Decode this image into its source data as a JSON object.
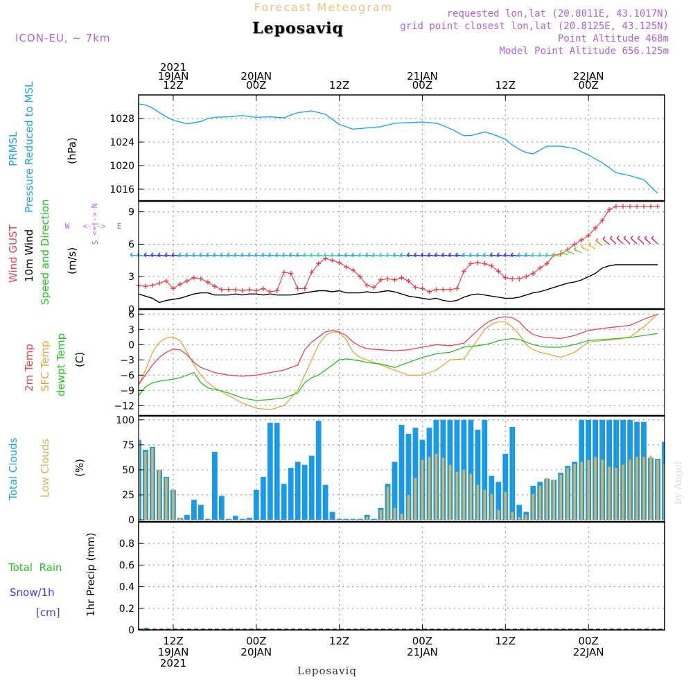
{
  "header": {
    "super_title": "Forecast Meteogram",
    "title": "Leposaviq",
    "model": "ICON-EU, ~ 7km",
    "requested": "requested lon,lat (20.8011E, 43.1017N)",
    "grid_point": "grid point closest lon,lat (20.8125E, 43.125N)",
    "point_altitude": "Point Altitude 468m",
    "model_altitude": "Model Point Altitude 656.125m"
  },
  "footer": {
    "location": "Leposaviq",
    "watermark": "by Angel"
  },
  "time_axis": {
    "top_ticks": [
      {
        "t": 12,
        "lines": [
          "2021",
          "19JAN",
          "12Z"
        ]
      },
      {
        "t": 24,
        "lines": [
          "20JAN",
          "00Z"
        ]
      },
      {
        "t": 36,
        "lines": [
          "12Z"
        ]
      },
      {
        "t": 48,
        "lines": [
          "21JAN",
          "00Z"
        ]
      },
      {
        "t": 60,
        "lines": [
          "12Z"
        ]
      },
      {
        "t": 72,
        "lines": [
          "22JAN",
          "00Z"
        ]
      }
    ],
    "bottom_ticks": [
      {
        "t": 12,
        "lines": [
          "12Z",
          "19JAN",
          "2021"
        ]
      },
      {
        "t": 24,
        "lines": [
          "00Z",
          "20JAN"
        ]
      },
      {
        "t": 36,
        "lines": [
          "12Z"
        ]
      },
      {
        "t": 48,
        "lines": [
          "00Z",
          "21JAN"
        ]
      },
      {
        "t": 60,
        "lines": [
          "12Z"
        ]
      },
      {
        "t": 72,
        "lines": [
          "00Z",
          "22JAN"
        ]
      }
    ],
    "t_range": [
      7,
      83
    ]
  },
  "panel_labels": {
    "pressure": {
      "name1": "PRMSL",
      "name2": "Pressure Reduced to MSL",
      "unit": "(hPa)"
    },
    "wind": {
      "gust": "Wind GUST",
      "wind10": "10m Wind",
      "speed_dir": "Speed and Direction",
      "unit": "(m/s)",
      "compass_n": "N",
      "compass_s": "S",
      "compass_w": "W",
      "compass_e": "E"
    },
    "temp": {
      "t2m": "2m Temp",
      "sfc": "SFC Temp",
      "dewpt": "dewpt Temp",
      "unit": "(C)"
    },
    "clouds": {
      "total": "Total Clouds",
      "low": "Low Clouds",
      "unit": "(%)"
    },
    "precip": {
      "total_rain": "Total  Rain",
      "snow": "Snow/1h",
      "snow_unit": "[cm]",
      "ylabel": "1hr Precip (mm)"
    }
  },
  "colors": {
    "pressure": "#1aa7e6",
    "gust": "#e8424f",
    "wind10": "#000000",
    "t2m": "#e8424f",
    "sfc": "#e6a53a",
    "dewpt": "#22c422",
    "total_clouds": "#1a9ae6",
    "low_clouds": "#d9b25a",
    "rain": "#22c422",
    "snow": "#3a3ae6",
    "purple": "#b061d9",
    "orange": "#f0c07a"
  },
  "chart_data": [
    {
      "type": "line",
      "panel": "pressure",
      "title": "PRMSL",
      "ylabel": "(hPa)",
      "ylim": [
        1014,
        1032
      ],
      "yticks": [
        1016,
        1020,
        1024,
        1028
      ],
      "x": [
        7,
        8,
        9,
        10,
        11,
        12,
        13,
        14,
        15,
        16,
        17,
        18,
        20,
        22,
        24,
        26,
        28,
        29,
        30,
        32,
        34,
        36,
        38,
        40,
        42,
        44,
        46,
        48,
        50,
        51,
        52,
        54,
        55,
        56,
        57,
        58,
        60,
        61,
        62,
        63,
        64,
        66,
        68,
        70,
        72,
        74,
        76,
        78,
        80,
        82
      ],
      "series": [
        {
          "values": [
            1030.5,
            1030.3,
            1029.8,
            1029.0,
            1028.3,
            1027.7,
            1027.4,
            1027.1,
            1027.3,
            1027.5,
            1028.0,
            1028.2,
            1028.3,
            1028.5,
            1028.2,
            1028.3,
            1028.1,
            1028.6,
            1029.0,
            1029.3,
            1028.7,
            1027.0,
            1026.2,
            1026.4,
            1026.6,
            1027.2,
            1027.3,
            1027.4,
            1027.2,
            1026.8,
            1026.3,
            1025.1,
            1025.1,
            1025.4,
            1025.7,
            1025.4,
            1024.5,
            1023.5,
            1022.8,
            1022.2,
            1022.0,
            1023.3,
            1023.3,
            1022.9,
            1021.8,
            1020.5,
            1018.8,
            1018.3,
            1017.6,
            1015.3
          ]
        }
      ]
    },
    {
      "type": "line",
      "panel": "wind",
      "ylabel": "(m/s)",
      "ylim": [
        0,
        10
      ],
      "yticks": [
        0,
        3,
        6,
        9
      ],
      "x": [
        7,
        8,
        9,
        10,
        11,
        12,
        13,
        14,
        15,
        16,
        17,
        18,
        19,
        20,
        21,
        22,
        23,
        24,
        25,
        26,
        27,
        28,
        29,
        30,
        31,
        32,
        33,
        34,
        35,
        36,
        37,
        38,
        39,
        40,
        41,
        42,
        43,
        44,
        45,
        46,
        47,
        48,
        49,
        50,
        51,
        52,
        53,
        54,
        55,
        56,
        57,
        58,
        59,
        60,
        61,
        62,
        63,
        64,
        65,
        66,
        67,
        68,
        69,
        70,
        71,
        72,
        73,
        74,
        75,
        76,
        77,
        78,
        79,
        80,
        81,
        82
      ],
      "series": [
        {
          "name": "Wind GUST",
          "values": [
            2.2,
            2.1,
            2.2,
            2.4,
            2.6,
            1.9,
            2.3,
            2.6,
            2.9,
            2.8,
            2.5,
            2.1,
            1.8,
            1.8,
            1.8,
            1.7,
            1.8,
            1.7,
            1.9,
            1.6,
            1.7,
            3.4,
            3.3,
            1.9,
            1.9,
            3.4,
            4.2,
            4.7,
            4.5,
            4.3,
            3.9,
            3.6,
            3.0,
            2.2,
            2.0,
            2.7,
            2.8,
            2.7,
            2.9,
            2.6,
            2.0,
            1.9,
            1.6,
            1.8,
            1.8,
            1.8,
            1.9,
            3.5,
            4.2,
            4.3,
            4.2,
            4.0,
            3.5,
            2.9,
            2.8,
            2.8,
            3.0,
            3.3,
            3.8,
            4.2,
            5.0,
            5.1,
            5.5,
            6.0,
            6.4,
            6.8,
            7.5,
            8.2,
            9.2,
            9.5,
            9.5,
            9.5,
            9.5,
            9.5,
            9.5,
            9.5
          ]
        },
        {
          "name": "10m Wind",
          "values": [
            1.4,
            1.2,
            1.0,
            0.6,
            0.8,
            0.9,
            1.0,
            1.2,
            1.4,
            1.5,
            1.5,
            1.3,
            1.3,
            1.3,
            1.4,
            1.3,
            1.4,
            1.4,
            1.3,
            1.4,
            1.3,
            1.3,
            1.3,
            1.4,
            1.5,
            1.6,
            1.7,
            1.7,
            1.6,
            1.7,
            1.5,
            1.5,
            1.5,
            1.6,
            1.5,
            1.6,
            1.7,
            1.6,
            1.4,
            1.2,
            1.1,
            1.0,
            0.9,
            1.0,
            0.8,
            0.7,
            0.8,
            1.1,
            1.3,
            1.4,
            1.3,
            1.2,
            1.1,
            1.0,
            1.0,
            1.1,
            1.3,
            1.5,
            1.6,
            1.8,
            2.0,
            2.2,
            2.4,
            2.5,
            2.7,
            3.0,
            3.3,
            3.8,
            4.0,
            4.1,
            4.1,
            4.1,
            4.1,
            4.1,
            4.1,
            4.1
          ]
        }
      ]
    },
    {
      "type": "line",
      "panel": "temperature",
      "ylabel": "(C)",
      "ylim": [
        -14,
        7
      ],
      "yticks": [
        -12,
        -9,
        -6,
        -3,
        0,
        3,
        6
      ],
      "x": [
        7,
        8,
        9,
        10,
        11,
        12,
        13,
        14,
        15,
        16,
        17,
        18,
        20,
        22,
        24,
        26,
        28,
        30,
        31,
        32,
        33,
        34,
        35,
        36,
        37,
        38,
        39,
        40,
        42,
        44,
        46,
        48,
        50,
        52,
        54,
        56,
        57,
        58,
        59,
        60,
        61,
        62,
        63,
        64,
        65,
        66,
        68,
        70,
        72,
        74,
        76,
        78,
        80,
        82
      ],
      "series": [
        {
          "name": "2m Temp",
          "values": [
            -7.8,
            -6.0,
            -4.0,
            -2.5,
            -1.5,
            -0.9,
            -1.0,
            -2.0,
            -3.5,
            -4.5,
            -5.0,
            -5.5,
            -6.0,
            -6.2,
            -6.0,
            -5.5,
            -5.0,
            -4.0,
            -1.0,
            0.5,
            1.5,
            2.5,
            2.8,
            2.5,
            1.8,
            0.5,
            -0.3,
            -0.8,
            -1.0,
            -1.2,
            -1.0,
            -0.5,
            0.0,
            -0.2,
            0.3,
            2.8,
            4.0,
            4.8,
            5.3,
            5.5,
            5.3,
            4.5,
            3.0,
            2.0,
            1.6,
            1.4,
            1.2,
            1.8,
            2.8,
            3.2,
            3.5,
            3.8,
            5.0,
            6.0
          ]
        },
        {
          "name": "SFC Temp",
          "values": [
            -8.0,
            -5.0,
            -1.5,
            0.5,
            1.3,
            1.5,
            0.8,
            -1.5,
            -4.0,
            -6.0,
            -7.5,
            -8.5,
            -10.0,
            -11.5,
            -12.5,
            -12.8,
            -12.0,
            -9.0,
            -6.0,
            -3.0,
            0.0,
            1.8,
            2.5,
            2.4,
            1.0,
            -1.5,
            -2.5,
            -3.0,
            -4.0,
            -5.0,
            -6.0,
            -6.0,
            -5.0,
            -3.0,
            -2.8,
            1.0,
            3.0,
            4.0,
            4.5,
            4.5,
            3.5,
            2.0,
            0.0,
            -1.0,
            -1.5,
            -1.8,
            -2.5,
            -1.5,
            0.5,
            0.8,
            1.0,
            1.5,
            3.5,
            6.0
          ]
        },
        {
          "name": "dewpt Temp",
          "values": [
            -10.0,
            -8.3,
            -7.5,
            -7.2,
            -7.0,
            -6.8,
            -6.5,
            -6.0,
            -5.5,
            -7.5,
            -8.5,
            -8.8,
            -9.5,
            -10.5,
            -11.0,
            -10.8,
            -10.5,
            -9.5,
            -7.5,
            -6.5,
            -6.0,
            -5.0,
            -4.0,
            -3.0,
            -2.8,
            -3.0,
            -3.2,
            -3.5,
            -3.8,
            -4.5,
            -3.5,
            -2.5,
            -1.8,
            -1.5,
            -0.5,
            -0.2,
            0.0,
            0.3,
            0.8,
            1.0,
            1.2,
            1.0,
            0.5,
            0.0,
            -0.3,
            -0.5,
            -0.5,
            0.0,
            0.8,
            1.0,
            1.2,
            1.4,
            1.8,
            2.2
          ]
        }
      ]
    },
    {
      "type": "bar",
      "panel": "clouds",
      "ylabel": "(%)",
      "ylim": [
        -2,
        104
      ],
      "yticks": [
        0,
        25,
        50,
        75,
        100
      ],
      "x": [
        7,
        8,
        9,
        10,
        11,
        12,
        13,
        14,
        15,
        16,
        17,
        18,
        19,
        20,
        21,
        22,
        23,
        24,
        25,
        26,
        27,
        28,
        29,
        30,
        31,
        32,
        33,
        34,
        35,
        36,
        37,
        38,
        39,
        40,
        41,
        42,
        43,
        44,
        45,
        46,
        47,
        48,
        49,
        50,
        51,
        52,
        53,
        54,
        55,
        56,
        57,
        58,
        59,
        60,
        61,
        62,
        63,
        64,
        65,
        66,
        67,
        68,
        69,
        70,
        71,
        72,
        73,
        74,
        75,
        76,
        77,
        78,
        79,
        80,
        81,
        82,
        83
      ],
      "series": [
        {
          "name": "Total Clouds",
          "values": [
            80,
            70,
            73,
            50,
            43,
            30,
            2,
            5,
            20,
            15,
            1,
            68,
            24,
            1,
            4,
            1,
            2,
            30,
            43,
            97,
            97,
            36,
            52,
            58,
            55,
            64,
            99,
            35,
            8,
            1,
            1,
            1,
            1,
            5,
            1,
            12,
            36,
            58,
            95,
            86,
            92,
            80,
            92,
            100,
            100,
            100,
            100,
            100,
            100,
            90,
            100,
            44,
            38,
            66,
            93,
            15,
            8,
            34,
            38,
            41,
            40,
            47,
            54,
            58,
            100,
            100,
            100,
            100,
            100,
            100,
            100,
            100,
            98,
            98,
            62,
            61,
            78
          ]
        },
        {
          "name": "Low Clouds",
          "values": [
            80,
            68,
            72,
            50,
            42,
            30,
            2,
            1,
            1,
            1,
            1,
            1,
            1,
            1,
            1,
            1,
            1,
            1,
            1,
            1,
            1,
            1,
            1,
            1,
            1,
            1,
            1,
            1,
            1,
            1,
            1,
            1,
            1,
            3,
            1,
            10,
            33,
            12,
            6,
            25,
            42,
            60,
            63,
            66,
            62,
            55,
            48,
            50,
            46,
            35,
            30,
            26,
            10,
            28,
            8,
            3,
            5,
            26,
            34,
            42,
            40,
            45,
            52,
            56,
            58,
            60,
            63,
            60,
            53,
            52,
            55,
            60,
            63,
            63,
            64,
            60,
            56
          ]
        }
      ]
    },
    {
      "type": "bar",
      "panel": "precip",
      "ylabel": "1hr Precip (mm)",
      "ylim": [
        0,
        1.0
      ],
      "yticks": [
        0,
        0.2,
        0.4,
        0.6,
        0.8
      ],
      "x": [
        8
      ],
      "series": [
        {
          "name": "Total Rain",
          "values": [
            0.02
          ]
        },
        {
          "name": "Snow/1h",
          "values": [
            0.0
          ]
        }
      ]
    }
  ]
}
